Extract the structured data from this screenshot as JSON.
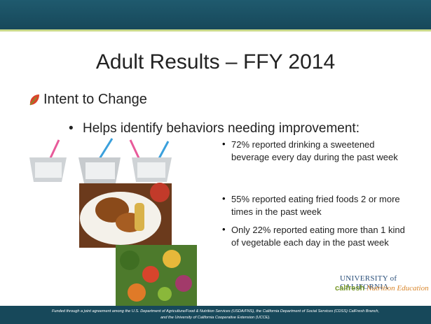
{
  "slide": {
    "title": "Adult Results – FFY 2014",
    "bullet": "Intent to Change",
    "sub_bullet": "Helps identify behaviors needing improvement:",
    "points": [
      "72% reported drinking a sweetened beverage every day during the past week",
      "55% reported eating fried foods 2 or more times in the past week",
      "Only 22% reported eating more than 1 kind of vegetable each day in the past week"
    ],
    "logo": {
      "line1": "UNIVERSITY of CALIFORNIA",
      "brand": "calfresh",
      "tagline": "Nutrition Education"
    },
    "footer": [
      "Funded through a joint agreement among the U.S. Department of Agriculture/Food & Nutrition Services (USDA/FNS), the California Department of Social Services (CDSS) CalFresh Branch,",
      "and the University of California Cooperative Extension (UCCE)."
    ]
  }
}
